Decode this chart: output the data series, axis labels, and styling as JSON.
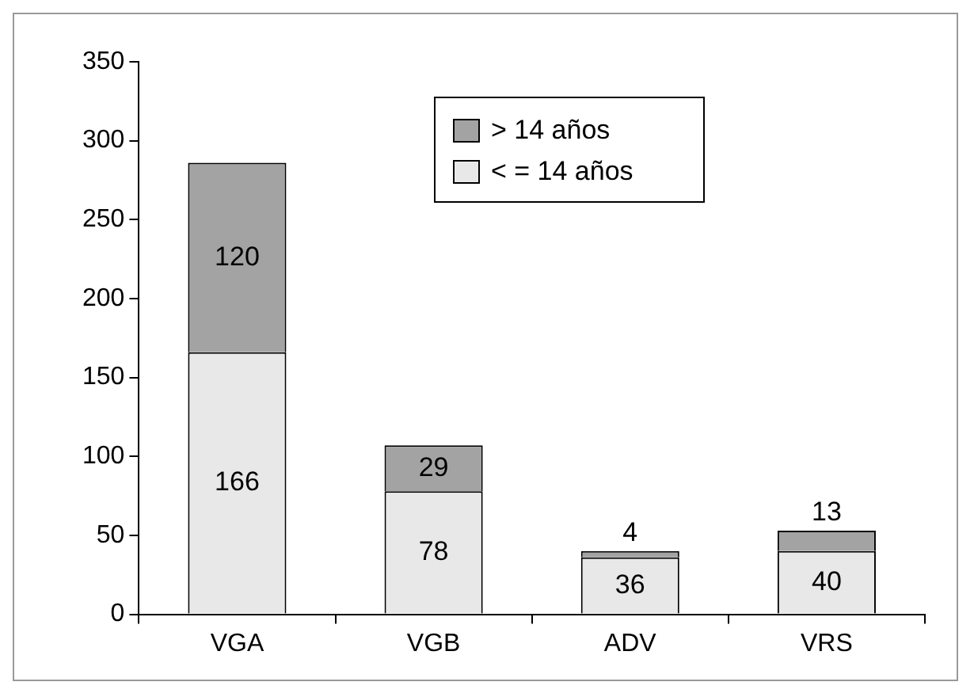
{
  "chart_data": {
    "type": "bar",
    "stacked": true,
    "categories": [
      "VGA",
      "VGB",
      "ADV",
      "VRS"
    ],
    "series": [
      {
        "name": "< = 14 años",
        "color": "#e8e8e8",
        "values": [
          166,
          78,
          36,
          40
        ]
      },
      {
        "name": "> 14 años",
        "color": "#a3a3a3",
        "values": [
          120,
          29,
          4,
          13
        ]
      }
    ],
    "ylim": [
      0,
      350
    ],
    "yticks": [
      0,
      50,
      100,
      150,
      200,
      250,
      300,
      350
    ],
    "grid": false,
    "legend": "top right",
    "data_labels": true
  }
}
